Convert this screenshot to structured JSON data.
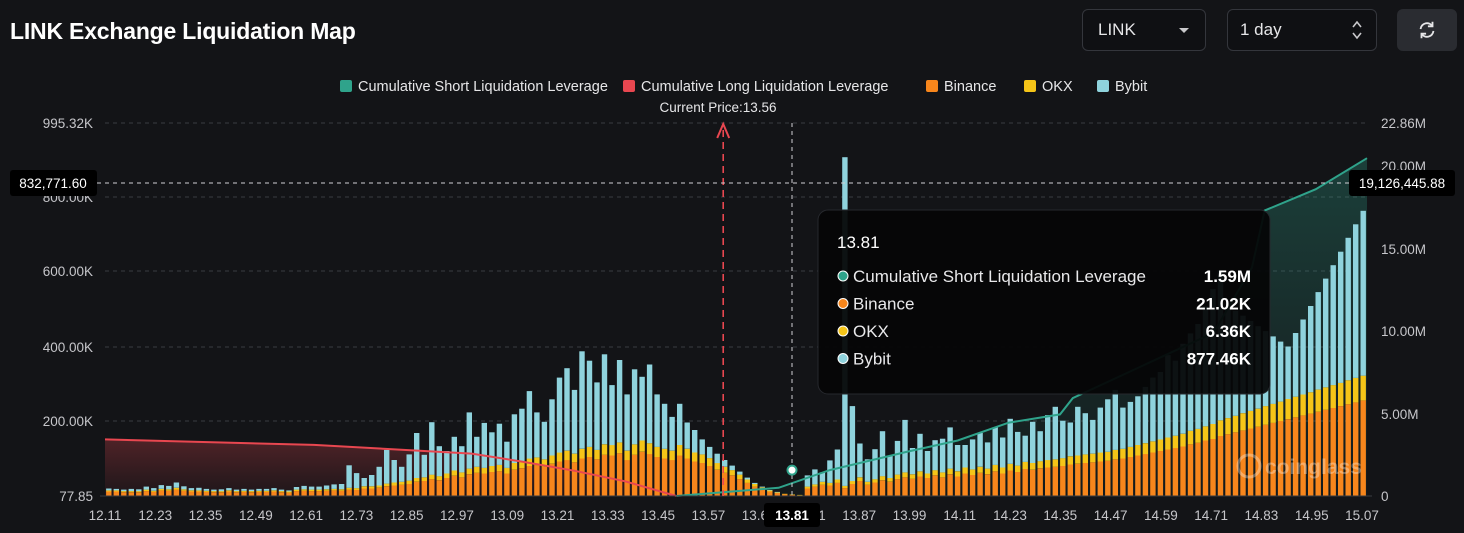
{
  "header": {
    "title": "LINK Exchange Liquidation Map",
    "symbol_value": "LINK",
    "interval_value": "1 day"
  },
  "legend": [
    {
      "label": "Cumulative Short Liquidation Leverage",
      "color": "#2fa38b"
    },
    {
      "label": "Cumulative Long Liquidation Leverage",
      "color": "#e84750"
    },
    {
      "label": "Binance",
      "color": "#f7861c"
    },
    {
      "label": "OKX",
      "color": "#f5c518"
    },
    {
      "label": "Bybit",
      "color": "#8fd3dd"
    }
  ],
  "current_price_label": "Current Price:13.56",
  "crosshair": {
    "left_value": "832,771.60",
    "right_value": "19,126,445.88",
    "x_label": "13.81"
  },
  "tooltip": {
    "title": "13.81",
    "rows": [
      {
        "label": "Cumulative Short Liquidation Leverage",
        "value": "1.59M",
        "color": "#2fa38b"
      },
      {
        "label": "Binance",
        "value": "21.02K",
        "color": "#f7861c"
      },
      {
        "label": "OKX",
        "value": "6.36K",
        "color": "#f5c518"
      },
      {
        "label": "Bybit",
        "value": "877.46K",
        "color": "#8fd3dd"
      }
    ]
  },
  "watermark": "coinglass",
  "chart_data": {
    "type": "bar",
    "x_tick_labels": [
      "12.11",
      "12.23",
      "12.35",
      "12.49",
      "12.61",
      "12.73",
      "12.85",
      "12.97",
      "13.09",
      "13.21",
      "13.33",
      "13.45",
      "13.57",
      "13.69",
      "13.81",
      "13.87",
      "13.99",
      "14.11",
      "14.23",
      "14.35",
      "14.47",
      "14.59",
      "14.71",
      "14.83",
      "14.95",
      "15.07"
    ],
    "left_axis": {
      "ticks": [
        "77.85",
        "200.00K",
        "400.00K",
        "600.00K",
        "800.00K",
        "995.32K"
      ],
      "range": [
        77.85,
        995320
      ]
    },
    "right_axis": {
      "ticks": [
        "0",
        "5.00M",
        "10.00M",
        "15.00M",
        "20.00M",
        "22.86M"
      ],
      "range": [
        0,
        22860000
      ]
    },
    "current_price": 13.56,
    "x_range": [
      12.11,
      15.07
    ],
    "bars_k": {
      "comment_units": "thousands, stacked Binance/OKX/Bybit per price level",
      "binance": [
        12,
        12,
        10,
        10,
        10,
        13,
        11,
        15,
        14,
        17,
        14,
        12,
        12,
        11,
        10,
        10,
        12,
        10,
        11,
        10,
        11,
        11,
        12,
        10,
        9,
        13,
        14,
        13,
        13,
        14,
        15,
        14,
        17,
        16,
        20,
        20,
        22,
        26,
        28,
        30,
        32,
        38,
        40,
        45,
        42,
        48,
        54,
        50,
        58,
        62,
        60,
        64,
        66,
        60,
        70,
        74,
        80,
        82,
        78,
        86,
        92,
        96,
        90,
        100,
        104,
        98,
        110,
        108,
        114,
        96,
        110,
        118,
        112,
        104,
        100,
        96,
        108,
        100,
        92,
        88,
        80,
        70,
        62,
        55,
        45,
        35,
        25,
        18,
        12,
        8,
        5,
        3,
        2,
        20,
        25,
        30,
        28,
        35,
        21,
        32,
        40,
        30,
        36,
        42,
        38,
        45,
        50,
        46,
        52,
        48,
        55,
        50,
        58,
        52,
        60,
        56,
        62,
        58,
        66,
        60,
        68,
        64,
        72,
        70,
        74,
        76,
        78,
        80,
        84,
        86,
        88,
        90,
        92,
        94,
        98,
        100,
        104,
        108,
        112,
        116,
        120,
        124,
        128,
        132,
        138,
        142,
        148,
        152,
        160,
        165,
        170,
        175,
        180,
        185,
        190,
        195,
        200,
        205,
        210,
        215,
        220,
        225,
        230,
        235,
        240,
        245,
        250,
        255
      ],
      "okx": [
        3,
        3,
        3,
        3,
        3,
        4,
        3,
        4,
        4,
        5,
        4,
        3,
        3,
        3,
        3,
        3,
        3,
        3,
        3,
        3,
        3,
        3,
        3,
        3,
        3,
        4,
        4,
        4,
        4,
        4,
        4,
        4,
        5,
        5,
        6,
        6,
        6,
        7,
        8,
        8,
        9,
        10,
        10,
        12,
        11,
        12,
        14,
        13,
        15,
        16,
        15,
        16,
        17,
        15,
        18,
        19,
        20,
        21,
        20,
        22,
        24,
        25,
        23,
        26,
        27,
        25,
        28,
        28,
        29,
        25,
        28,
        30,
        29,
        27,
        26,
        25,
        28,
        26,
        24,
        23,
        21,
        18,
        16,
        14,
        12,
        9,
        7,
        5,
        3,
        2,
        1,
        1,
        1,
        5,
        6,
        8,
        7,
        9,
        6,
        8,
        10,
        8,
        9,
        11,
        10,
        12,
        13,
        12,
        14,
        12,
        14,
        13,
        15,
        14,
        16,
        15,
        16,
        15,
        17,
        16,
        18,
        17,
        19,
        18,
        19,
        20,
        20,
        21,
        22,
        22,
        23,
        23,
        24,
        24,
        25,
        26,
        27,
        28,
        29,
        30,
        31,
        32,
        33,
        34,
        36,
        37,
        38,
        40,
        42,
        43,
        44,
        46,
        47,
        48,
        50,
        51,
        52,
        54,
        55,
        56,
        57,
        59,
        60,
        61,
        62,
        64,
        65,
        66
      ],
      "bybit": [
        5,
        4,
        4,
        6,
        5,
        8,
        7,
        10,
        9,
        14,
        8,
        6,
        7,
        5,
        4,
        5,
        6,
        4,
        5,
        4,
        5,
        5,
        6,
        4,
        3,
        7,
        9,
        8,
        8,
        10,
        12,
        14,
        60,
        40,
        22,
        30,
        50,
        90,
        60,
        40,
        70,
        120,
        60,
        140,
        80,
        60,
        90,
        70,
        150,
        80,
        120,
        90,
        110,
        70,
        130,
        140,
        180,
        120,
        100,
        150,
        200,
        220,
        170,
        260,
        230,
        180,
        240,
        160,
        220,
        150,
        200,
        170,
        210,
        140,
        120,
        90,
        110,
        70,
        60,
        40,
        30,
        25,
        18,
        12,
        8,
        5,
        3,
        2,
        1,
        1,
        0,
        0,
        0,
        30,
        40,
        25,
        60,
        80,
        877,
        200,
        90,
        60,
        80,
        120,
        60,
        90,
        140,
        70,
        100,
        60,
        80,
        90,
        110,
        70,
        60,
        80,
        90,
        70,
        100,
        80,
        120,
        90,
        70,
        110,
        80,
        120,
        140,
        100,
        90,
        130,
        110,
        90,
        120,
        140,
        160,
        110,
        120,
        130,
        150,
        170,
        180,
        220,
        200,
        240,
        260,
        280,
        320,
        360,
        400,
        300,
        280,
        260,
        240,
        220,
        200,
        180,
        160,
        140,
        170,
        200,
        230,
        260,
        290,
        320,
        350,
        380,
        410,
        440
      ]
    },
    "long_cumulative": {
      "points": [
        [
          12.11,
          3.47
        ],
        [
          12.6,
          3.13
        ],
        [
          12.97,
          2.6
        ],
        [
          13.09,
          2.1
        ],
        [
          13.21,
          1.55
        ],
        [
          13.33,
          0.9
        ],
        [
          13.45,
          0.0
        ]
      ],
      "unit": "M"
    },
    "short_cumulative": {
      "points": [
        [
          13.45,
          0.0
        ],
        [
          13.69,
          0.5
        ],
        [
          13.81,
          1.59
        ],
        [
          13.99,
          2.7
        ],
        [
          14.11,
          3.4
        ],
        [
          14.23,
          4.5
        ],
        [
          14.35,
          5.0
        ],
        [
          14.38,
          6.0
        ],
        [
          14.71,
          10.0
        ],
        [
          14.8,
          14.0
        ],
        [
          14.83,
          17.5
        ],
        [
          14.95,
          18.8
        ],
        [
          15.07,
          20.7
        ]
      ],
      "unit": "M"
    }
  }
}
